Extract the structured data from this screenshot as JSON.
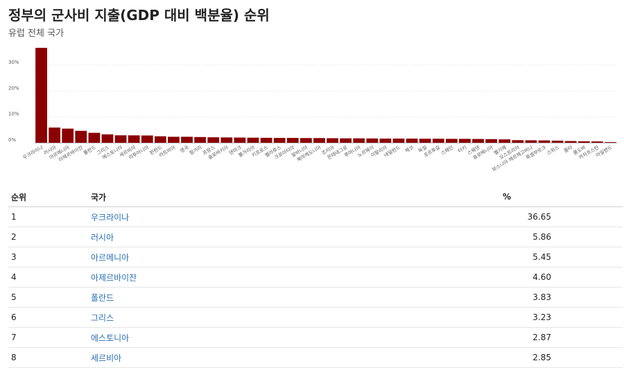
{
  "header": {
    "title": "정부의 군사비 지출(GDP 대비 백분율) 순위",
    "subtitle": "유럽 전체 국가"
  },
  "chart_data": {
    "type": "bar",
    "bar_color": "#8b0000",
    "grid": true,
    "ylim": [
      0,
      38
    ],
    "yticks": [
      0,
      10,
      20,
      30
    ],
    "ytick_labels": [
      "0%",
      "10%",
      "20%",
      "30%"
    ],
    "categories": [
      "우크라이나",
      "러시아",
      "아르메니아",
      "아제르바이잔",
      "폴란드",
      "그리스",
      "에스토니아",
      "세르비아",
      "리투아니아",
      "핀란드",
      "라트비아",
      "영국",
      "헝가리",
      "프랑스",
      "슬로바키아",
      "덴마크",
      "불가리아",
      "키프로스",
      "벨라루스",
      "크로아티아",
      "알바니아",
      "북마케도니아",
      "조지아",
      "몬테네그로",
      "루마니아",
      "노르웨이",
      "이탈리아",
      "네덜란드",
      "체코",
      "독일",
      "포르투갈",
      "스페인",
      "터키",
      "스웨덴",
      "슬로베니아",
      "벨기에",
      "오스트리아",
      "보스니아 헤르체고비나",
      "룩셈부르크",
      "스위스",
      "몰타",
      "몰도바",
      "카자흐스탄",
      "아일랜드"
    ],
    "values": [
      36.65,
      5.86,
      5.45,
      4.6,
      3.83,
      3.23,
      2.87,
      2.85,
      2.8,
      2.5,
      2.3,
      2.3,
      2.2,
      2.1,
      2.05,
      2.0,
      1.95,
      1.9,
      1.85,
      1.85,
      1.8,
      1.8,
      1.75,
      1.7,
      1.7,
      1.65,
      1.6,
      1.6,
      1.6,
      1.55,
      1.55,
      1.5,
      1.5,
      1.45,
      1.4,
      1.3,
      1.0,
      0.95,
      0.9,
      0.8,
      0.65,
      0.55,
      0.5,
      0.25
    ]
  },
  "table": {
    "headers": {
      "rank": "순위",
      "country": "국가",
      "pct": "%"
    },
    "rows": [
      {
        "rank": "1",
        "country": "우크라이나",
        "pct": "36.65"
      },
      {
        "rank": "2",
        "country": "러시아",
        "pct": "5.86"
      },
      {
        "rank": "3",
        "country": "아르메니아",
        "pct": "5.45"
      },
      {
        "rank": "4",
        "country": "아제르바이잔",
        "pct": "4.60"
      },
      {
        "rank": "5",
        "country": "폴란드",
        "pct": "3.83"
      },
      {
        "rank": "6",
        "country": "그리스",
        "pct": "3.23"
      },
      {
        "rank": "7",
        "country": "에스토니아",
        "pct": "2.87"
      },
      {
        "rank": "8",
        "country": "세르비아",
        "pct": "2.85"
      }
    ]
  }
}
